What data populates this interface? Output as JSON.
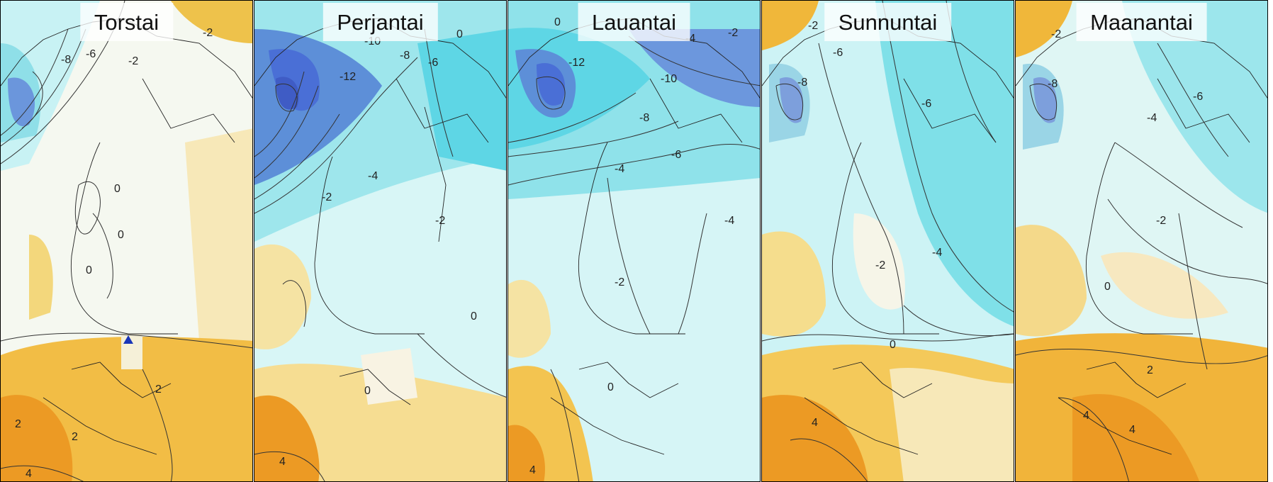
{
  "panels": [
    {
      "day": "Torstai",
      "contour_labels": [
        "-2",
        "2",
        "-8",
        "-6",
        "-2",
        "0",
        "0",
        "0",
        "2",
        "2",
        "4"
      ],
      "marker": "blue-triangle"
    },
    {
      "day": "Perjantai",
      "contour_labels": [
        "0",
        "-10",
        "-8",
        "-6",
        "-12",
        "-4",
        "-2",
        "-2",
        "0",
        "0",
        "4"
      ],
      "marker": null
    },
    {
      "day": "Lauantai",
      "contour_labels": [
        "0",
        "-4",
        "-2",
        "-12",
        "-10",
        "-8",
        "-6",
        "-4",
        "-4",
        "-2",
        "0",
        "4"
      ],
      "marker": null
    },
    {
      "day": "Sunnuntai",
      "contour_labels": [
        "-2",
        "-6",
        "-8",
        "-6",
        "-4",
        "-2",
        "0",
        "4"
      ],
      "marker": null
    },
    {
      "day": "Maanantai",
      "contour_labels": [
        "-2",
        "-8",
        "-6",
        "-4",
        "-2",
        "0",
        "2",
        "4",
        "4"
      ],
      "marker": null
    }
  ],
  "colors": {
    "very_cold": "#4a6fd6",
    "cold": "#6fd3e6",
    "cool": "#c9f3f5",
    "neutral": "#f4f7ef",
    "mild": "#f8e3a0",
    "warm": "#f0b73a",
    "warmest": "#ec9a24",
    "contour": "#333333",
    "marker": "#1a36b8"
  }
}
